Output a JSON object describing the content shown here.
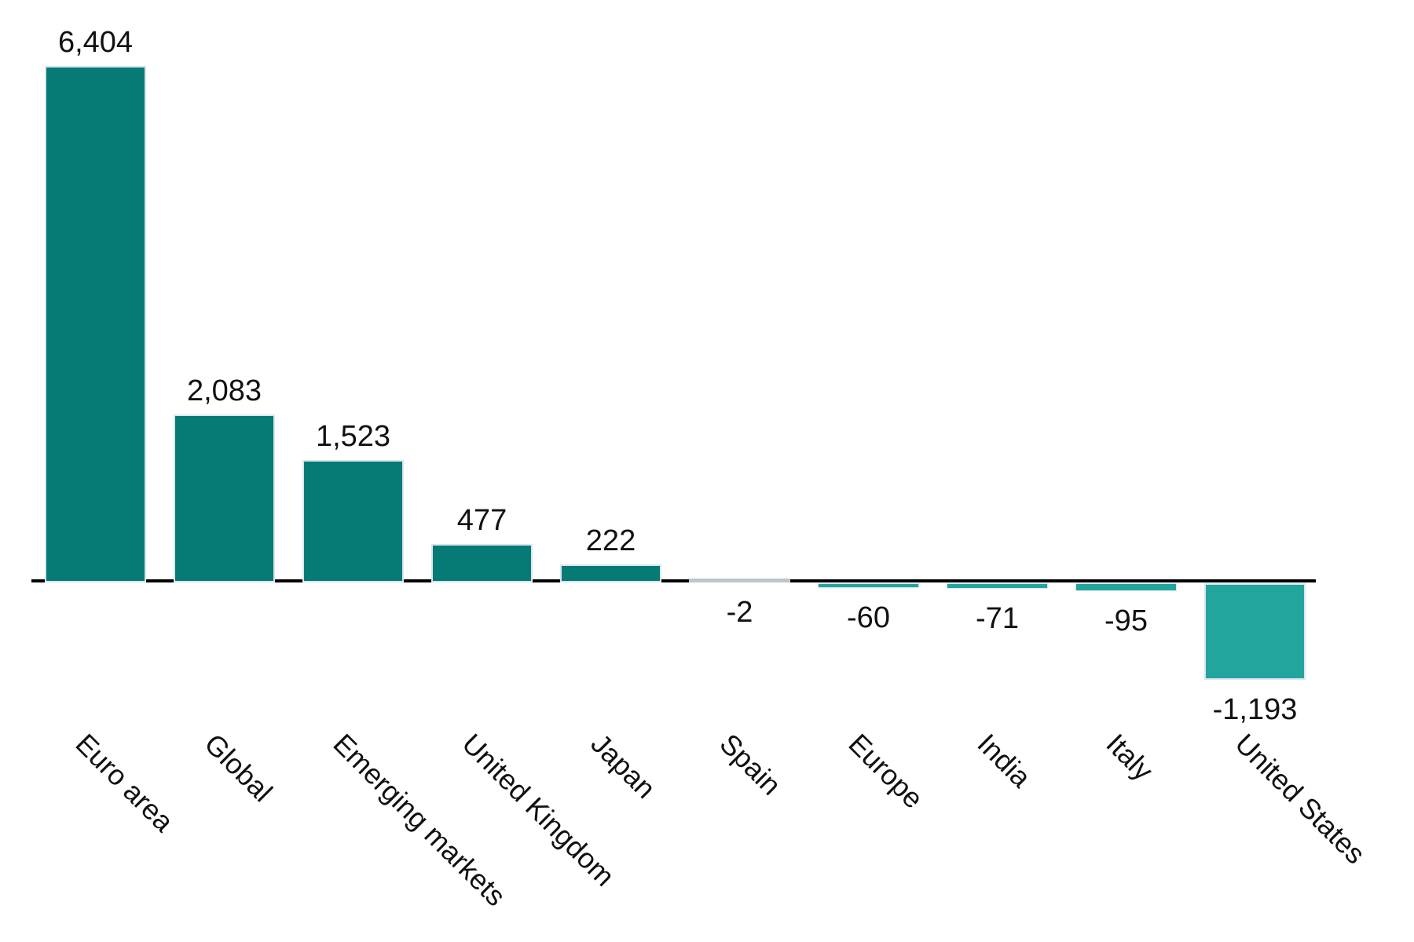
{
  "chart_data": {
    "type": "bar",
    "title": "",
    "xlabel": "",
    "ylabel": "",
    "categories": [
      "Euro area",
      "Global",
      "Emerging markets",
      "United Kingdom",
      "Japan",
      "Spain",
      "Europe",
      "India",
      "Italy",
      "United States"
    ],
    "values": [
      6404,
      2083,
      1523,
      477,
      222,
      -2,
      -60,
      -71,
      -95,
      -1193
    ],
    "value_labels": [
      "6,404",
      "2,083",
      "1,523",
      "477",
      "222",
      "-2",
      "-60",
      "-71",
      "-95",
      "-1,193"
    ],
    "ylim": [
      -1300,
      6600
    ],
    "grid": false,
    "legend": false,
    "baseline_value": 0,
    "tick_label_rotation_deg": 45,
    "colors": {
      "bar_positive": "#067a75",
      "bar_negative": "#22a59d",
      "bar_stroke": "#d9e5ee",
      "zero_height_bar": "#bdc5cb",
      "axis": "#000000",
      "text": "#111111",
      "background": "#ffffff"
    }
  }
}
